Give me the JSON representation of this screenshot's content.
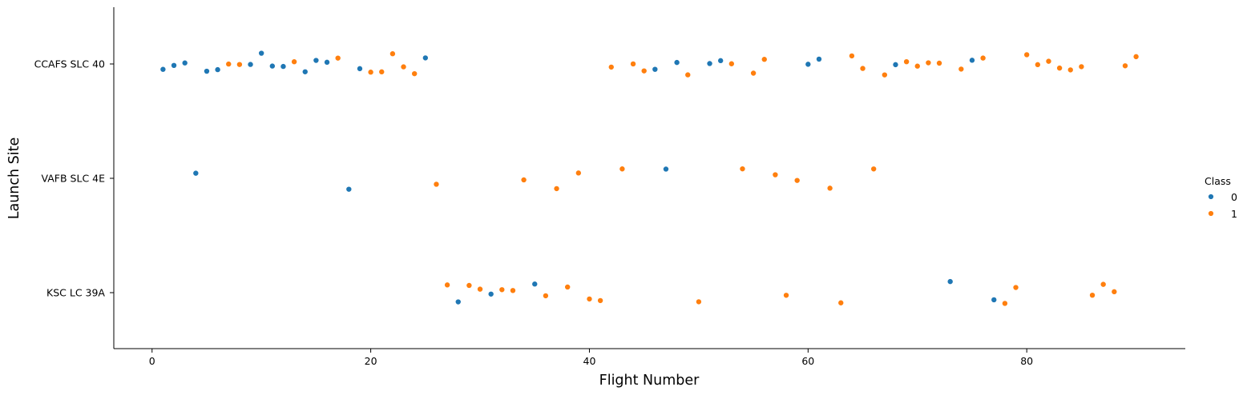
{
  "chart_data": {
    "type": "scatter",
    "xlabel": "Flight Number",
    "ylabel": "Launch Site",
    "xlim": [
      -3.5,
      94.5
    ],
    "x_ticks": [
      0,
      20,
      40,
      60,
      80
    ],
    "categories": [
      "CCAFS SLC 40",
      "VAFB SLC 4E",
      "KSC LC 39A"
    ],
    "legend": {
      "title": "Class",
      "position": "right",
      "entries": [
        "0",
        "1"
      ]
    },
    "colors": {
      "0": "#1f77b4",
      "1": "#ff7f0e"
    },
    "points": [
      {
        "x": 1,
        "site": "CCAFS SLC 40",
        "class": 0
      },
      {
        "x": 2,
        "site": "CCAFS SLC 40",
        "class": 0
      },
      {
        "x": 3,
        "site": "CCAFS SLC 40",
        "class": 0
      },
      {
        "x": 4,
        "site": "VAFB SLC 4E",
        "class": 0
      },
      {
        "x": 5,
        "site": "CCAFS SLC 40",
        "class": 0
      },
      {
        "x": 6,
        "site": "CCAFS SLC 40",
        "class": 0
      },
      {
        "x": 7,
        "site": "CCAFS SLC 40",
        "class": 1
      },
      {
        "x": 8,
        "site": "CCAFS SLC 40",
        "class": 1
      },
      {
        "x": 9,
        "site": "CCAFS SLC 40",
        "class": 0
      },
      {
        "x": 10,
        "site": "CCAFS SLC 40",
        "class": 0
      },
      {
        "x": 11,
        "site": "CCAFS SLC 40",
        "class": 0
      },
      {
        "x": 12,
        "site": "CCAFS SLC 40",
        "class": 0
      },
      {
        "x": 13,
        "site": "CCAFS SLC 40",
        "class": 1
      },
      {
        "x": 14,
        "site": "CCAFS SLC 40",
        "class": 0
      },
      {
        "x": 15,
        "site": "CCAFS SLC 40",
        "class": 0
      },
      {
        "x": 16,
        "site": "CCAFS SLC 40",
        "class": 0
      },
      {
        "x": 17,
        "site": "CCAFS SLC 40",
        "class": 1
      },
      {
        "x": 18,
        "site": "VAFB SLC 4E",
        "class": 0
      },
      {
        "x": 19,
        "site": "CCAFS SLC 40",
        "class": 0
      },
      {
        "x": 20,
        "site": "CCAFS SLC 40",
        "class": 1
      },
      {
        "x": 21,
        "site": "CCAFS SLC 40",
        "class": 1
      },
      {
        "x": 22,
        "site": "CCAFS SLC 40",
        "class": 1
      },
      {
        "x": 23,
        "site": "CCAFS SLC 40",
        "class": 1
      },
      {
        "x": 24,
        "site": "CCAFS SLC 40",
        "class": 1
      },
      {
        "x": 25,
        "site": "CCAFS SLC 40",
        "class": 0
      },
      {
        "x": 26,
        "site": "VAFB SLC 4E",
        "class": 1
      },
      {
        "x": 27,
        "site": "KSC LC 39A",
        "class": 1
      },
      {
        "x": 28,
        "site": "KSC LC 39A",
        "class": 0
      },
      {
        "x": 29,
        "site": "KSC LC 39A",
        "class": 1
      },
      {
        "x": 30,
        "site": "KSC LC 39A",
        "class": 1
      },
      {
        "x": 31,
        "site": "KSC LC 39A",
        "class": 0
      },
      {
        "x": 32,
        "site": "KSC LC 39A",
        "class": 1
      },
      {
        "x": 33,
        "site": "KSC LC 39A",
        "class": 1
      },
      {
        "x": 34,
        "site": "VAFB SLC 4E",
        "class": 1
      },
      {
        "x": 35,
        "site": "KSC LC 39A",
        "class": 0
      },
      {
        "x": 36,
        "site": "KSC LC 39A",
        "class": 1
      },
      {
        "x": 37,
        "site": "VAFB SLC 4E",
        "class": 1
      },
      {
        "x": 38,
        "site": "KSC LC 39A",
        "class": 1
      },
      {
        "x": 39,
        "site": "VAFB SLC 4E",
        "class": 1
      },
      {
        "x": 40,
        "site": "KSC LC 39A",
        "class": 1
      },
      {
        "x": 41,
        "site": "KSC LC 39A",
        "class": 1
      },
      {
        "x": 42,
        "site": "CCAFS SLC 40",
        "class": 1
      },
      {
        "x": 43,
        "site": "VAFB SLC 4E",
        "class": 1
      },
      {
        "x": 44,
        "site": "CCAFS SLC 40",
        "class": 1
      },
      {
        "x": 45,
        "site": "CCAFS SLC 40",
        "class": 1
      },
      {
        "x": 46,
        "site": "CCAFS SLC 40",
        "class": 0
      },
      {
        "x": 47,
        "site": "VAFB SLC 4E",
        "class": 0
      },
      {
        "x": 48,
        "site": "CCAFS SLC 40",
        "class": 0
      },
      {
        "x": 49,
        "site": "CCAFS SLC 40",
        "class": 1
      },
      {
        "x": 50,
        "site": "KSC LC 39A",
        "class": 1
      },
      {
        "x": 51,
        "site": "CCAFS SLC 40",
        "class": 0
      },
      {
        "x": 52,
        "site": "CCAFS SLC 40",
        "class": 0
      },
      {
        "x": 53,
        "site": "CCAFS SLC 40",
        "class": 1
      },
      {
        "x": 54,
        "site": "VAFB SLC 4E",
        "class": 1
      },
      {
        "x": 55,
        "site": "CCAFS SLC 40",
        "class": 1
      },
      {
        "x": 56,
        "site": "CCAFS SLC 40",
        "class": 1
      },
      {
        "x": 57,
        "site": "VAFB SLC 4E",
        "class": 1
      },
      {
        "x": 58,
        "site": "KSC LC 39A",
        "class": 1
      },
      {
        "x": 59,
        "site": "VAFB SLC 4E",
        "class": 1
      },
      {
        "x": 60,
        "site": "CCAFS SLC 40",
        "class": 0
      },
      {
        "x": 61,
        "site": "CCAFS SLC 40",
        "class": 0
      },
      {
        "x": 62,
        "site": "VAFB SLC 4E",
        "class": 1
      },
      {
        "x": 63,
        "site": "KSC LC 39A",
        "class": 1
      },
      {
        "x": 64,
        "site": "CCAFS SLC 40",
        "class": 1
      },
      {
        "x": 65,
        "site": "CCAFS SLC 40",
        "class": 1
      },
      {
        "x": 66,
        "site": "VAFB SLC 4E",
        "class": 1
      },
      {
        "x": 67,
        "site": "CCAFS SLC 40",
        "class": 1
      },
      {
        "x": 68,
        "site": "CCAFS SLC 40",
        "class": 0
      },
      {
        "x": 69,
        "site": "CCAFS SLC 40",
        "class": 1
      },
      {
        "x": 70,
        "site": "CCAFS SLC 40",
        "class": 1
      },
      {
        "x": 71,
        "site": "CCAFS SLC 40",
        "class": 1
      },
      {
        "x": 72,
        "site": "CCAFS SLC 40",
        "class": 1
      },
      {
        "x": 73,
        "site": "KSC LC 39A",
        "class": 0
      },
      {
        "x": 74,
        "site": "CCAFS SLC 40",
        "class": 1
      },
      {
        "x": 75,
        "site": "CCAFS SLC 40",
        "class": 0
      },
      {
        "x": 76,
        "site": "CCAFS SLC 40",
        "class": 1
      },
      {
        "x": 77,
        "site": "KSC LC 39A",
        "class": 0
      },
      {
        "x": 78,
        "site": "KSC LC 39A",
        "class": 1
      },
      {
        "x": 79,
        "site": "KSC LC 39A",
        "class": 1
      },
      {
        "x": 80,
        "site": "CCAFS SLC 40",
        "class": 1
      },
      {
        "x": 81,
        "site": "CCAFS SLC 40",
        "class": 1
      },
      {
        "x": 82,
        "site": "CCAFS SLC 40",
        "class": 1
      },
      {
        "x": 83,
        "site": "CCAFS SLC 40",
        "class": 1
      },
      {
        "x": 84,
        "site": "CCAFS SLC 40",
        "class": 1
      },
      {
        "x": 85,
        "site": "CCAFS SLC 40",
        "class": 1
      },
      {
        "x": 86,
        "site": "KSC LC 39A",
        "class": 1
      },
      {
        "x": 87,
        "site": "KSC LC 39A",
        "class": 1
      },
      {
        "x": 88,
        "site": "KSC LC 39A",
        "class": 1
      },
      {
        "x": 89,
        "site": "CCAFS SLC 40",
        "class": 1
      },
      {
        "x": 90,
        "site": "CCAFS SLC 40",
        "class": 1
      }
    ]
  }
}
